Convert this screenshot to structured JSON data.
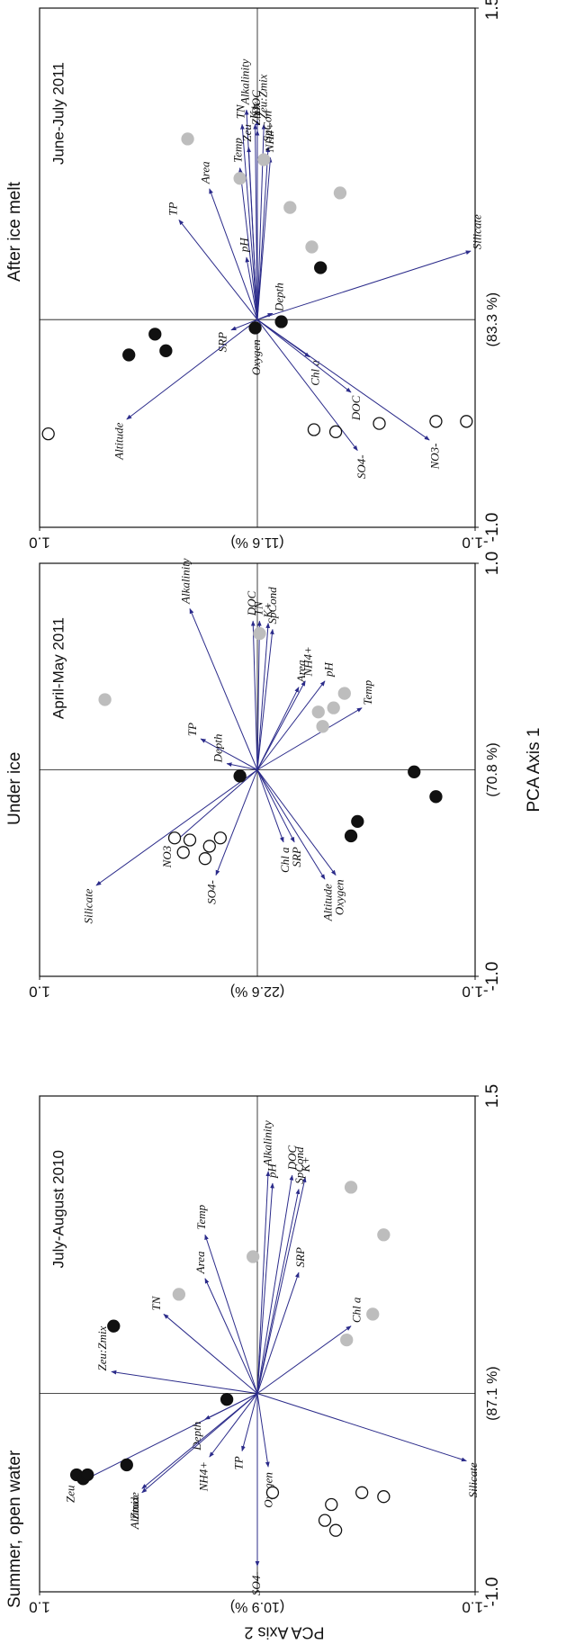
{
  "chart_data": [
    {
      "type": "biplot",
      "title": "Summer, open water",
      "subtitle": "July-August 2010",
      "xlim": [
        -1.0,
        1.5
      ],
      "xticks": [
        {
          "value": -1.0,
          "label": "-1.0"
        },
        1.5
      ],
      "xlabel": "(87.1 %)",
      "ylim": [
        -1.0,
        1.0
      ],
      "yticks": [
        {
          "value": -1.0,
          "label": "-1.0"
        },
        {
          "value": 1.0,
          "label": "1.0"
        }
      ],
      "ylabel": "(10.9 %)",
      "y_axis_title": "PCA Axis 2",
      "series": [
        {
          "color": "#111111",
          "edgecolor": "#111111",
          "x": [
            -0.41,
            -0.43,
            -0.41,
            -0.36,
            -0.03,
            0.34
          ],
          "y": [
            0.83,
            0.8,
            0.78,
            0.6,
            0.14,
            0.66
          ]
        },
        {
          "color": "#bdbdbd",
          "edgecolor": "#bdbdbd",
          "x": [
            0.5,
            0.69,
            1.04,
            0.8,
            0.4,
            0.27
          ],
          "y": [
            0.36,
            0.02,
            -0.43,
            -0.58,
            -0.53,
            -0.41
          ]
        },
        {
          "color": "#ffffff",
          "edgecolor": "#111111",
          "x": [
            -0.5,
            -0.64,
            -0.69,
            -0.56,
            -0.5,
            -0.52
          ],
          "y": [
            -0.07,
            -0.31,
            -0.36,
            -0.34,
            -0.48,
            -0.58
          ]
        }
      ],
      "vectors": {
        "color": "#2b2b8a",
        "labels": [
          "Zeu",
          "Zeu:Zmix",
          "TN",
          "Area",
          "Temp",
          "Alkalinity",
          "pH",
          "DOC",
          "K+",
          "SpCond",
          "SRP",
          "Chl a",
          "Silicate",
          "Oxygen",
          "SO4-",
          "TP",
          "NH4+",
          "Depth",
          "Zmix",
          "Altitude"
        ],
        "x": [
          -0.45,
          0.11,
          0.4,
          0.58,
          0.8,
          1.12,
          1.06,
          1.1,
          1.09,
          1.03,
          0.61,
          0.34,
          -0.34,
          -0.37,
          -0.87,
          -0.29,
          -0.32,
          -0.13,
          -0.5,
          -0.48
        ],
        "y": [
          0.82,
          0.67,
          0.43,
          0.24,
          0.24,
          -0.05,
          -0.07,
          -0.16,
          -0.22,
          -0.19,
          -0.19,
          -0.43,
          -0.96,
          -0.05,
          0.0,
          0.07,
          0.22,
          0.24,
          0.53,
          0.53
        ]
      }
    },
    {
      "type": "biplot",
      "title": "Under ice",
      "subtitle": "April-May 2011",
      "xlim": [
        -1.0,
        1.0
      ],
      "xticks": [
        {
          "value": -1.0,
          "label": "-1.0"
        },
        {
          "value": 1.0,
          "label": "1.0"
        }
      ],
      "xlabel": "(70.8 %)",
      "ylim": [
        -1.0,
        1.0
      ],
      "yticks": [
        {
          "value": -1.0,
          "label": "-1.0"
        },
        {
          "value": 1.0,
          "label": "1.0"
        }
      ],
      "ylabel": "(22.6 %)",
      "x_axis_title": "PCA Axis 1",
      "series": [
        {
          "color": "#bdbdbd",
          "edgecolor": "#bdbdbd",
          "x": [
            0.34,
            0.66,
            0.28,
            0.21,
            0.3,
            0.37
          ],
          "y": [
            0.7,
            -0.01,
            -0.28,
            -0.3,
            -0.35,
            -0.4
          ]
        },
        {
          "color": "#111111",
          "edgecolor": "#111111",
          "x": [
            -0.03,
            -0.25,
            -0.32,
            -0.01,
            -0.13
          ],
          "y": [
            0.08,
            -0.46,
            -0.43,
            -0.72,
            -0.82
          ]
        },
        {
          "color": "#ffffff",
          "edgecolor": "#111111",
          "x": [
            -0.33,
            -0.34,
            -0.4,
            -0.37,
            -0.33,
            -0.43
          ],
          "y": [
            0.38,
            0.31,
            0.34,
            0.22,
            0.17,
            0.24
          ]
        }
      ],
      "vectors": {
        "color": "#2b2b8a",
        "labels": [
          "Alkalinity",
          "DOC",
          "TN",
          "K+",
          "SpCond",
          "Area",
          "NH4+",
          "pH",
          "Temp",
          "TP",
          "Depth",
          "Silicate",
          "NO3",
          "SO4-",
          "Chl a",
          "SRP",
          "Altitude",
          "Oxygen"
        ],
        "x": [
          0.78,
          0.72,
          0.72,
          0.71,
          0.68,
          0.4,
          0.43,
          0.43,
          0.3,
          0.15,
          0.03,
          -0.56,
          -0.35,
          -0.51,
          -0.35,
          -0.35,
          -0.53,
          -0.51
        ],
        "y": [
          0.31,
          0.02,
          -0.01,
          -0.05,
          -0.07,
          -0.19,
          -0.22,
          -0.31,
          -0.48,
          0.26,
          0.14,
          0.74,
          0.38,
          0.19,
          -0.12,
          -0.17,
          -0.31,
          -0.36
        ]
      }
    },
    {
      "type": "biplot",
      "title": "After ice melt",
      "subtitle": "June-July 2011",
      "xlim": [
        -1.0,
        1.5
      ],
      "xticks": [
        {
          "value": -1.0,
          "label": "-1.0"
        },
        1.5
      ],
      "xlabel": "(83.3 %)",
      "ylim": [
        -1.0,
        1.0
      ],
      "yticks": [
        {
          "value": -1.0,
          "label": "-1.0"
        },
        {
          "value": 1.0,
          "label": "1.0"
        }
      ],
      "ylabel": "(11.6 %)",
      "series": [
        {
          "color": "#bdbdbd",
          "edgecolor": "#bdbdbd",
          "x": [
            0.87,
            0.68,
            0.77,
            0.61,
            0.54,
            0.35
          ],
          "y": [
            0.32,
            0.08,
            -0.03,
            -0.38,
            -0.15,
            -0.25
          ]
        },
        {
          "color": "#111111",
          "edgecolor": "#111111",
          "x": [
            -0.17,
            -0.07,
            -0.15,
            -0.04,
            -0.01,
            0.25
          ],
          "y": [
            0.59,
            0.47,
            0.42,
            0.01,
            -0.11,
            -0.29
          ]
        },
        {
          "color": "#ffffff",
          "edgecolor": "#111111",
          "x": [
            -0.55,
            -0.53,
            -0.54,
            -0.5,
            -0.49,
            -0.49
          ],
          "y": [
            0.96,
            -0.26,
            -0.36,
            -0.56,
            -0.82,
            -0.96
          ]
        }
      ],
      "vectors": {
        "color": "#2b2b8a",
        "labels": [
          "TP",
          "Area",
          "Temp",
          "TN",
          "Alkalinity",
          "Zeu",
          "K+",
          "DOC",
          "Zmix",
          "Zeu:Zmix",
          "SpCon",
          "NH4+",
          "pH",
          "Silicate",
          "SRP",
          "Depth",
          "Chl a",
          "DOC",
          "Oxygen",
          "Altitude",
          "SO4-",
          "NO3-"
        ],
        "x": [
          0.48,
          0.63,
          0.73,
          0.94,
          1.01,
          0.83,
          0.94,
          0.96,
          0.91,
          0.94,
          0.83,
          0.78,
          0.3,
          0.33,
          -0.05,
          0.03,
          -0.18,
          -0.35,
          -0.07,
          -0.48,
          -0.63,
          -0.58
        ],
        "y": [
          0.36,
          0.22,
          0.08,
          0.07,
          0.05,
          0.04,
          0.01,
          0.0,
          0.0,
          -0.03,
          -0.05,
          -0.06,
          0.05,
          -0.98,
          0.12,
          -0.07,
          -0.24,
          -0.43,
          0.0,
          0.6,
          -0.46,
          -0.79
        ]
      }
    }
  ]
}
